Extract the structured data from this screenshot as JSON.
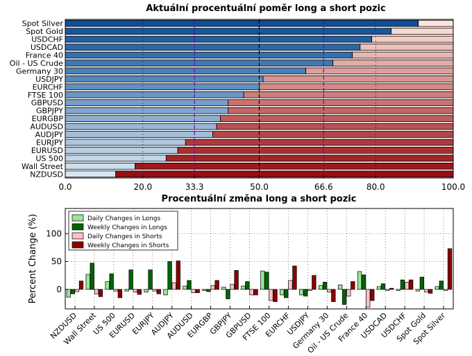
{
  "chart_data": [
    {
      "type": "bar",
      "orientation": "horizontal",
      "stacked": true,
      "title": "Aktuální procentuální poměr long a short pozic",
      "categories": [
        "Spot Silver",
        "Spot Gold",
        "USDCHF",
        "USDCAD",
        "France 40",
        "Oil - US Crude",
        "Germany 30",
        "USDJPY",
        "EURCHF",
        "FTSE 100",
        "GBPUSD",
        "GBPJPY",
        "EURGBP",
        "AUDUSD",
        "AUDJPY",
        "EURJPY",
        "EURUSD",
        "US 500",
        "Wall Street",
        "NZDUSD"
      ],
      "series": [
        {
          "values": [
            91,
            84,
            79,
            76,
            74,
            69,
            62,
            51,
            50,
            46,
            42,
            42,
            40,
            39,
            38,
            31,
            29,
            26,
            18,
            13
          ]
        },
        {
          "values": [
            9,
            16,
            21,
            24,
            26,
            31,
            38,
            49,
            50,
            54,
            58,
            58,
            60,
            61,
            62,
            69,
            71,
            74,
            82,
            87
          ]
        }
      ],
      "xlim": [
        0,
        100
      ],
      "xticks": [
        "0.0",
        "20.0",
        "33.3",
        "50.0",
        "66.6",
        "80.0",
        "100.0"
      ],
      "reference_lines": [
        33.3,
        50,
        66.6
      ],
      "grid": true
    },
    {
      "type": "bar",
      "title": "Procentuální změna long a short pozic",
      "ylabel": "Percent Change (%)",
      "ylim": [
        -35,
        145
      ],
      "yticks": [
        "0",
        "50",
        "100"
      ],
      "categories": [
        "NZDUSD",
        "Wall Street",
        "US 500",
        "EURUSD",
        "EURJPY",
        "AUDJPY",
        "AUDUSD",
        "EURGBP",
        "GBPJPY",
        "GBPUSD",
        "FTSE 100",
        "EURCHF",
        "USDJPY",
        "Germany 30",
        "Oil - US Crude",
        "France 40",
        "USDCAD",
        "USDCHF",
        "Spot Gold",
        "Spot Silver"
      ],
      "series": [
        {
          "name": "Daily Changes in Longs",
          "values": [
            -14,
            27,
            14,
            -3,
            -5,
            -10,
            6,
            -2,
            4,
            6,
            33,
            -10,
            -10,
            7,
            8,
            32,
            5,
            -2,
            -3,
            5
          ]
        },
        {
          "name": "Weekly Changes in Longs",
          "values": [
            -8,
            47,
            28,
            35,
            35,
            50,
            16,
            -4,
            -17,
            14,
            31,
            -15,
            -12,
            13,
            -27,
            26,
            10,
            17,
            22,
            15
          ]
        },
        {
          "name": "Daily Changes in Shorts",
          "values": [
            -4,
            -8,
            -3,
            -5,
            -3,
            12,
            -6,
            7,
            9,
            -10,
            -20,
            16,
            -2,
            -5,
            -12,
            -32,
            -2,
            13,
            -5,
            -2
          ]
        },
        {
          "name": "Weekly Changes in Shorts",
          "values": [
            15,
            -13,
            -15,
            -9,
            -8,
            51,
            -6,
            16,
            34,
            -10,
            -22,
            42,
            25,
            -22,
            14,
            -20,
            2,
            17,
            -7,
            73
          ]
        }
      ],
      "colors": [
        "#99e699",
        "#006400",
        "#ffc0cb",
        "#8b0000"
      ],
      "legend": "top-left",
      "grid": true
    }
  ]
}
